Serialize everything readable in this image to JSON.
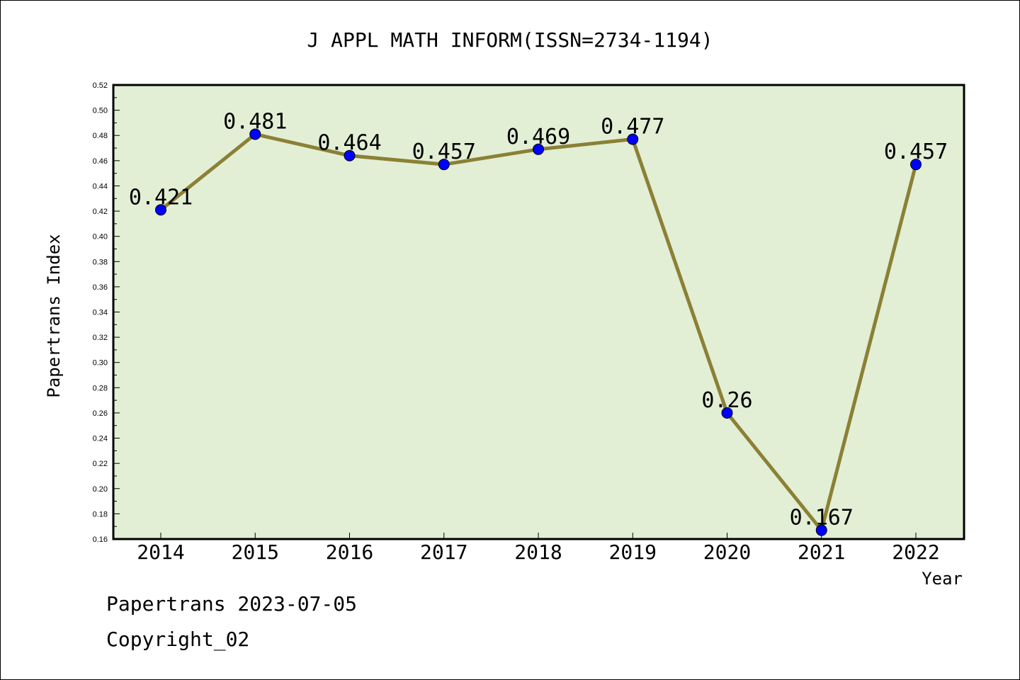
{
  "chart_data": {
    "type": "line",
    "title": "J APPL MATH INFORM(ISSN=2734-1194)",
    "xlabel": "Year",
    "ylabel": "Papertrans Index",
    "categories": [
      "2014",
      "2015",
      "2016",
      "2017",
      "2018",
      "2019",
      "2020",
      "2021",
      "2022"
    ],
    "values": [
      0.421,
      0.481,
      0.464,
      0.457,
      0.469,
      0.477,
      0.26,
      0.167,
      0.457
    ],
    "data_labels": [
      "0.421",
      "0.481",
      "0.464",
      "0.457",
      "0.469",
      "0.477",
      "0.26",
      "0.167",
      "0.457"
    ],
    "ylim": [
      0.16,
      0.52
    ],
    "yticks": [
      "0.16",
      "0.18",
      "0.20",
      "0.22",
      "0.24",
      "0.26",
      "0.28",
      "0.30",
      "0.32",
      "0.34",
      "0.36",
      "0.38",
      "0.40",
      "0.42",
      "0.44",
      "0.46",
      "0.48",
      "0.50",
      "0.52"
    ],
    "grid": false,
    "colors": {
      "plot_background": "#e2efd5",
      "line": "#8b8035",
      "marker": "#0000ff",
      "axes": "#000000"
    }
  },
  "footer": {
    "line1": "Papertrans 2023-07-05",
    "line2": "Copyright_02"
  }
}
